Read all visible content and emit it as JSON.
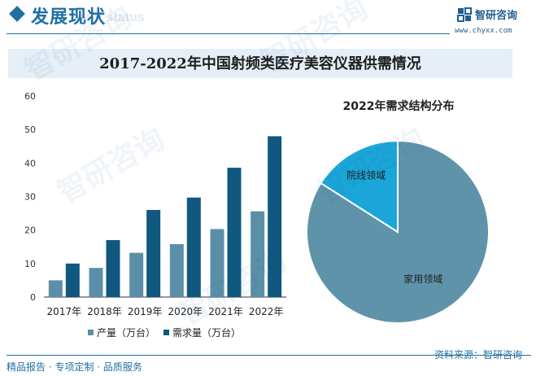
{
  "header": {
    "title": "发展现状",
    "subtitle": "ment status"
  },
  "brand": {
    "name": "智研咨询",
    "url": "www.chyxx.com",
    "watermark_text": "智研咨询"
  },
  "chart_title": "2017-2022年中国射频类医疗美容仪器供需情况",
  "colors": {
    "brand": "#1f6fa3",
    "production": "#5b8fa8",
    "demand": "#10587f",
    "pie_household": "#5f93aa",
    "pie_hospital": "#1aa6d8"
  },
  "chart_data": [
    {
      "type": "bar",
      "categories": [
        "2017年",
        "2018年",
        "2019年",
        "2020年",
        "2021年",
        "2022年"
      ],
      "series": [
        {
          "name": "产量（万台）",
          "values": [
            5,
            8.7,
            13.2,
            15.8,
            20.3,
            25.6
          ]
        },
        {
          "name": "需求量（万台）",
          "values": [
            10,
            17,
            26,
            29.7,
            38.6,
            48
          ]
        }
      ],
      "ylim": [
        0,
        60
      ],
      "yticks": [
        0,
        10,
        20,
        30,
        40,
        50,
        60
      ],
      "grid": false,
      "legend": "bottom"
    },
    {
      "type": "pie",
      "title": "2022年需求结构分布",
      "labels": [
        "家用领域",
        "院线领域"
      ],
      "values": [
        84,
        16
      ]
    }
  ],
  "footer": {
    "left": "精品报告 · 专项定制 · 品质服务",
    "source": "资料来源：智研咨询"
  }
}
